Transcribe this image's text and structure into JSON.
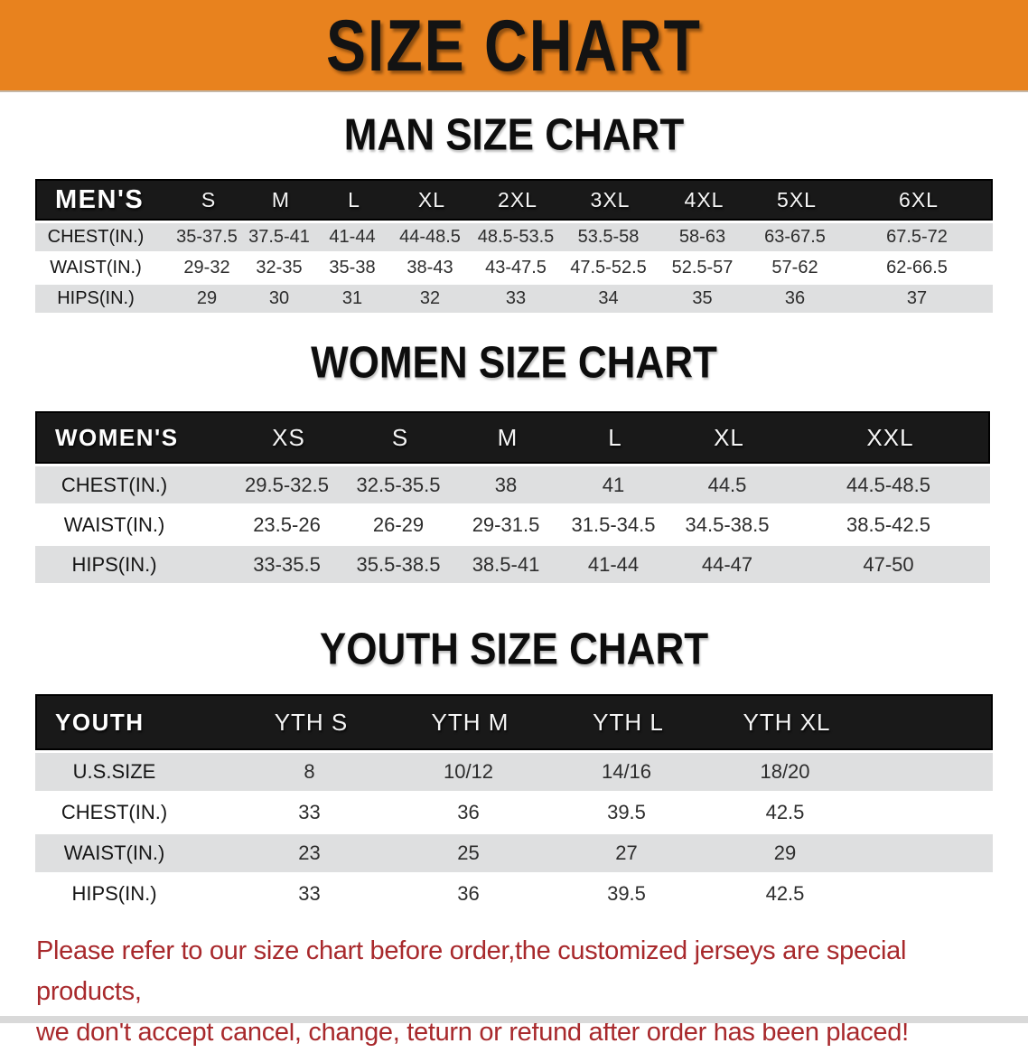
{
  "banner": {
    "title": "SIZE CHART"
  },
  "colors": {
    "banner_bg": "#E8821E",
    "table_header_bg": "#191919",
    "row_gray": "#DEDFE0",
    "notice_red": "#A8292C"
  },
  "sections": [
    {
      "heading": "MAN SIZE CHART",
      "table": {
        "header_label": "MEN'S",
        "columns": [
          "S",
          "M",
          "L",
          "XL",
          "2XL",
          "3XL",
          "4XL",
          "5XL",
          "6XL"
        ],
        "rows": [
          {
            "label": "CHEST(IN.)",
            "values": [
              "35-37.5",
              "37.5-41",
              "41-44",
              "44-48.5",
              "48.5-53.5",
              "53.5-58",
              "58-63",
              "63-67.5",
              "67.5-72"
            ]
          },
          {
            "label": "WAIST(IN.)",
            "values": [
              "29-32",
              "32-35",
              "35-38",
              "38-43",
              "43-47.5",
              "47.5-52.5",
              "52.5-57",
              "57-62",
              "62-66.5"
            ]
          },
          {
            "label": "HIPS(IN.)",
            "values": [
              "29",
              "30",
              "31",
              "32",
              "33",
              "34",
              "35",
              "36",
              "37"
            ]
          }
        ]
      }
    },
    {
      "heading": "WOMEN SIZE CHART",
      "table": {
        "header_label": "WOMEN'S",
        "columns": [
          "XS",
          "S",
          "M",
          "L",
          "XL",
          "XXL"
        ],
        "rows": [
          {
            "label": "CHEST(IN.)",
            "values": [
              "29.5-32.5",
              "32.5-35.5",
              "38",
              "41",
              "44.5",
              "44.5-48.5"
            ]
          },
          {
            "label": "WAIST(IN.)",
            "values": [
              "23.5-26",
              "26-29",
              "29-31.5",
              "31.5-34.5",
              "34.5-38.5",
              "38.5-42.5"
            ]
          },
          {
            "label": "HIPS(IN.)",
            "values": [
              "33-35.5",
              "35.5-38.5",
              "38.5-41",
              "41-44",
              "44-47",
              "47-50"
            ]
          }
        ]
      }
    },
    {
      "heading": "YOUTH SIZE CHART",
      "table": {
        "header_label": "YOUTH",
        "columns": [
          "YTH S",
          "YTH M",
          "YTH L",
          "YTH XL"
        ],
        "rows": [
          {
            "label": "U.S.SIZE",
            "values": [
              "8",
              "10/12",
              "14/16",
              "18/20"
            ]
          },
          {
            "label": "CHEST(IN.)",
            "values": [
              "33",
              "36",
              "39.5",
              "42.5"
            ]
          },
          {
            "label": "WAIST(IN.)",
            "values": [
              "23",
              "25",
              "27",
              "29"
            ]
          },
          {
            "label": "HIPS(IN.)",
            "values": [
              "33",
              "36",
              "39.5",
              "42.5"
            ]
          }
        ]
      }
    }
  ],
  "notice": {
    "line1": "Please refer to our size chart before order,the customized jerseys are special products,",
    "line2": "we don't accept cancel, change, teturn or refund after order has been placed!"
  }
}
